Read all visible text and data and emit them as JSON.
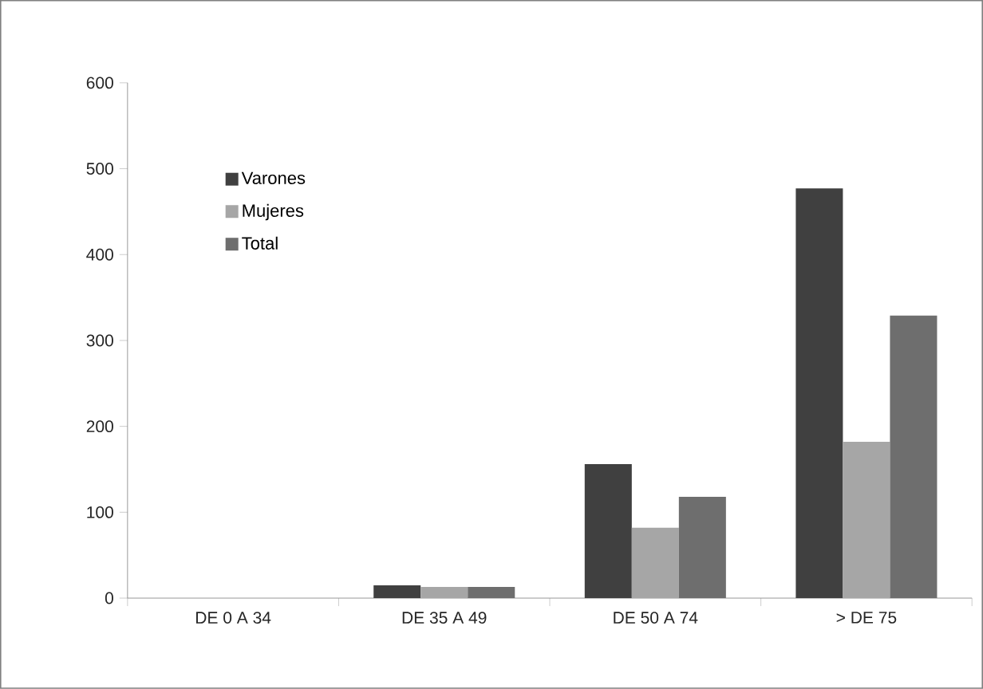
{
  "chart_data": {
    "type": "bar",
    "categories": [
      "DE 0 A 34",
      "DE 35 A 49",
      "DE 50 A 74",
      "> DE 75"
    ],
    "series": [
      {
        "name": "Varones",
        "color": "#404040",
        "values": [
          0,
          15,
          156,
          477
        ]
      },
      {
        "name": "Mujeres",
        "color": "#a6a6a6",
        "values": [
          0,
          13,
          82,
          182
        ]
      },
      {
        "name": "Total",
        "color": "#6e6e6e",
        "values": [
          0,
          13,
          118,
          329
        ]
      }
    ],
    "ylim": [
      0,
      600
    ],
    "yticks": [
      0,
      100,
      200,
      300,
      400,
      500,
      600
    ],
    "legend": "top left"
  }
}
